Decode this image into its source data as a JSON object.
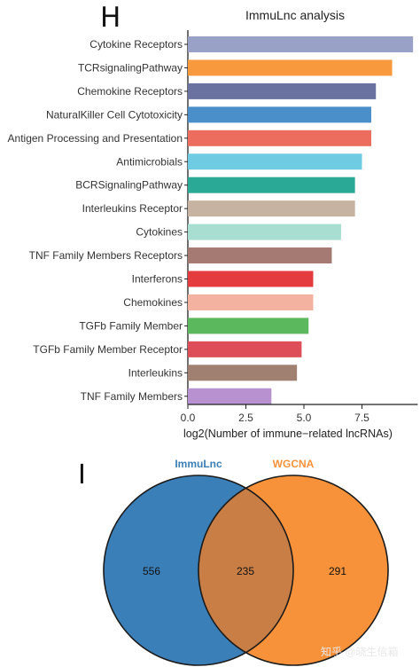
{
  "panels": {
    "h_label": "H",
    "i_label": "I"
  },
  "chart_data": [
    {
      "type": "bar",
      "orientation": "horizontal",
      "title": "ImmuLnc analysis",
      "xlabel": "log2(Number of immune−related lncRNAs)",
      "ylabel": "",
      "xlim": [
        0,
        10
      ],
      "xticks": [
        "0.0",
        "2.5",
        "5.0",
        "7.5"
      ],
      "tick_values": [
        0,
        2.5,
        5,
        7.5
      ],
      "categories": [
        "Cytokine Receptors",
        "TCRsignalingPathway",
        "Chemokine Receptors",
        "NaturalKiller Cell Cytotoxicity",
        "Antigen Processing and Presentation",
        "Antimicrobials",
        "BCRSignalingPathway",
        "Interleukins Receptor",
        "Cytokines",
        "TNF Family Members Receptors",
        "Interferons",
        "Chemokines",
        "TGFb Family Member",
        "TGFb Family Member Receptor",
        "Interleukins",
        "TNF Family Members"
      ],
      "values": [
        9.7,
        8.8,
        8.1,
        7.9,
        7.9,
        7.5,
        7.2,
        7.2,
        6.6,
        6.2,
        5.4,
        5.4,
        5.2,
        4.9,
        4.7,
        3.6
      ],
      "colors": [
        "#9aa1c6",
        "#f8993d",
        "#6a73a0",
        "#4a8fc9",
        "#ec6c5e",
        "#6fcbe1",
        "#2aaa96",
        "#c6b3a2",
        "#a8ddd1",
        "#a47a72",
        "#e33b3e",
        "#f3b1a0",
        "#5cb85c",
        "#de4e58",
        "#a08070",
        "#b892d0"
      ],
      "grid": false,
      "legend": "none"
    },
    {
      "type": "venn",
      "sets": [
        {
          "name": "ImmuLnc",
          "color": "#3b7fb8",
          "label_color": "#3b7fb8"
        },
        {
          "name": "WGCNA",
          "color": "#f7913a",
          "label_color": "#f7913a"
        }
      ],
      "regions": {
        "only_a": "556",
        "both": "235",
        "only_b": "291"
      },
      "overlap_color": "#c97e45"
    }
  ],
  "watermark": "知乎 @晓生信箱"
}
